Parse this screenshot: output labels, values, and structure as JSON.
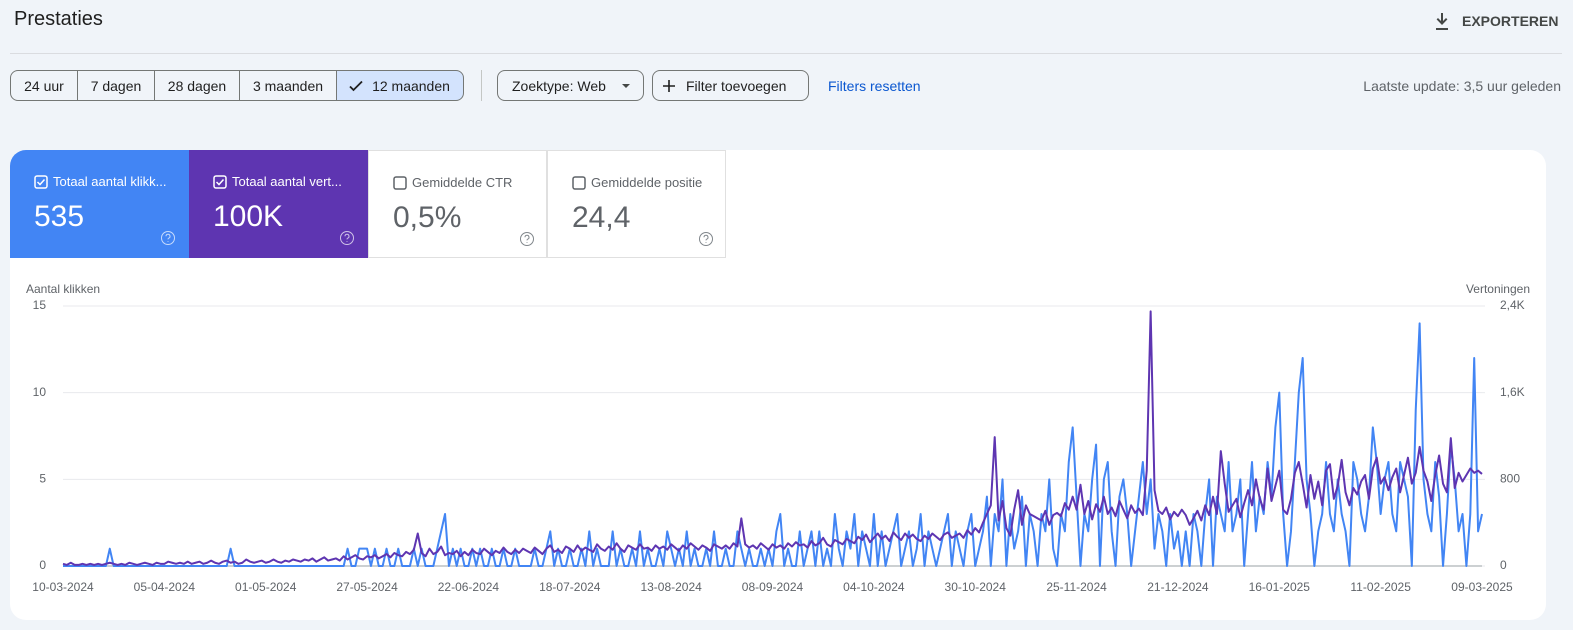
{
  "header": {
    "title": "Prestaties",
    "export": "EXPORTEREN"
  },
  "filters": {
    "ranges": [
      "24 uur",
      "7 dagen",
      "28 dagen",
      "3 maanden",
      "12 maanden"
    ],
    "search_type": "Zoektype: Web",
    "add_filter": "Filter toevoegen",
    "reset": "Filters resetten",
    "last_update": "Laatste update: 3,5 uur geleden"
  },
  "metrics": [
    {
      "label": "Totaal aantal klikk...",
      "value": "535"
    },
    {
      "label": "Totaal aantal vert...",
      "value": "100K"
    },
    {
      "label": "Gemiddelde CTR",
      "value": "0,5%"
    },
    {
      "label": "Gemiddelde positie",
      "value": "24,4"
    }
  ],
  "chart_data": {
    "type": "line",
    "y_label": "Aantal klikken",
    "y2_label": "Vertoningen",
    "ylim": [
      0,
      15
    ],
    "yticks": [
      0,
      5,
      10,
      15
    ],
    "y2lim": [
      0,
      2400
    ],
    "y2ticks": [
      0,
      800,
      {
        "value": 1600,
        "label": "1,6K"
      },
      {
        "value": 2400,
        "label": "2,4K"
      }
    ],
    "grid": true,
    "categories": [
      "10-03-2024",
      null,
      null,
      null,
      null,
      null,
      null,
      null,
      null,
      null,
      null,
      null,
      null,
      null,
      null,
      null,
      null,
      null,
      null,
      null,
      null,
      null,
      null,
      null,
      null,
      null,
      "05-04-2024",
      null,
      null,
      null,
      null,
      null,
      null,
      null,
      null,
      null,
      null,
      null,
      null,
      null,
      null,
      null,
      null,
      null,
      null,
      null,
      null,
      null,
      null,
      null,
      null,
      null,
      "01-05-2024",
      null,
      null,
      null,
      null,
      null,
      null,
      null,
      null,
      null,
      null,
      null,
      null,
      null,
      null,
      null,
      null,
      null,
      null,
      null,
      null,
      null,
      null,
      null,
      null,
      null,
      "27-05-2024",
      null,
      null,
      null,
      null,
      null,
      null,
      null,
      null,
      null,
      null,
      null,
      null,
      null,
      null,
      null,
      null,
      null,
      null,
      null,
      null,
      null,
      null,
      null,
      null,
      null,
      "22-06-2024",
      null,
      null,
      null,
      null,
      null,
      null,
      null,
      null,
      null,
      null,
      null,
      null,
      null,
      null,
      null,
      null,
      null,
      null,
      null,
      null,
      null,
      null,
      null,
      null,
      null,
      "18-07-2024",
      null,
      null,
      null,
      null,
      null,
      null,
      null,
      null,
      null,
      null,
      null,
      null,
      null,
      null,
      null,
      null,
      null,
      null,
      null,
      null,
      null,
      null,
      null,
      null,
      null,
      "13-08-2024",
      null,
      null,
      null,
      null,
      null,
      null,
      null,
      null,
      null,
      null,
      null,
      null,
      null,
      null,
      null,
      null,
      null,
      null,
      null,
      null,
      null,
      null,
      null,
      null,
      null,
      "08-09-2024",
      null,
      null,
      null,
      null,
      null,
      null,
      null,
      null,
      null,
      null,
      null,
      null,
      null,
      null,
      null,
      null,
      null,
      null,
      null,
      null,
      null,
      null,
      null,
      null,
      null,
      "04-10-2024",
      null,
      null,
      null,
      null,
      null,
      null,
      null,
      null,
      null,
      null,
      null,
      null,
      null,
      null,
      null,
      null,
      null,
      null,
      null,
      null,
      null,
      null,
      null,
      null,
      null,
      "30-10-2024",
      null,
      null,
      null,
      null,
      null,
      null,
      null,
      null,
      null,
      null,
      null,
      null,
      null,
      null,
      null,
      null,
      null,
      null,
      null,
      null,
      null,
      null,
      null,
      null,
      null,
      "25-11-2024",
      null,
      null,
      null,
      null,
      null,
      null,
      null,
      null,
      null,
      null,
      null,
      null,
      null,
      null,
      null,
      null,
      null,
      null,
      null,
      null,
      null,
      null,
      null,
      null,
      null,
      "21-12-2024",
      null,
      null,
      null,
      null,
      null,
      null,
      null,
      null,
      null,
      null,
      null,
      null,
      null,
      null,
      null,
      null,
      null,
      null,
      null,
      null,
      null,
      null,
      null,
      null,
      null,
      "16-01-2025",
      null,
      null,
      null,
      null,
      null,
      null,
      null,
      null,
      null,
      null,
      null,
      null,
      null,
      null,
      null,
      null,
      null,
      null,
      null,
      null,
      null,
      null,
      null,
      null,
      null,
      "11-02-2025",
      null,
      null,
      null,
      null,
      null,
      null,
      null,
      null,
      null,
      null,
      null,
      null,
      null,
      null,
      null,
      null,
      null,
      null,
      null,
      null,
      null,
      null,
      null,
      null,
      null,
      "09-03-2025"
    ],
    "series": [
      {
        "color": "#4285f4",
        "values": [
          0,
          0,
          0,
          0,
          0,
          0,
          0,
          0,
          0,
          0,
          0,
          0,
          1,
          0,
          0,
          0,
          0,
          0,
          0,
          0,
          0,
          0,
          0,
          0,
          0,
          0,
          0,
          0,
          0,
          0,
          0,
          0,
          0,
          0,
          0,
          0,
          0,
          0,
          0,
          0,
          0,
          0,
          0,
          1,
          0,
          0,
          0,
          0,
          0,
          0,
          0,
          0,
          0,
          0,
          0,
          0,
          0,
          0,
          0,
          0,
          0,
          0,
          0,
          0,
          0,
          0,
          0,
          0,
          0,
          0,
          0,
          0,
          0,
          1,
          0,
          0,
          1,
          1,
          1,
          0,
          1,
          0,
          0,
          1,
          0,
          0,
          1,
          0,
          0,
          0,
          1,
          0,
          1,
          0,
          0,
          0,
          1,
          2,
          3,
          0,
          1,
          0,
          1,
          0,
          0,
          1,
          0,
          1,
          0,
          0,
          1,
          0,
          0,
          1,
          0,
          0,
          1,
          0,
          0,
          0,
          0,
          1,
          0,
          0,
          1,
          2,
          0,
          1,
          0,
          0,
          1,
          0,
          0,
          1,
          0,
          2,
          0,
          1,
          0,
          0,
          0,
          2,
          0,
          1,
          0,
          0,
          1,
          0,
          2,
          0,
          1,
          0,
          0,
          1,
          0,
          2,
          1,
          0,
          1,
          0,
          2,
          0,
          1,
          0,
          0,
          1,
          0,
          2,
          0,
          0,
          1,
          0,
          0,
          2,
          1,
          0,
          1,
          0,
          0,
          1,
          0,
          1,
          0,
          2,
          3,
          0,
          1,
          0,
          0,
          2,
          0,
          1,
          2,
          0,
          2,
          0,
          1,
          0,
          3,
          1,
          0,
          2,
          1,
          3,
          0,
          2,
          1,
          0,
          3,
          0,
          2,
          0,
          1,
          2,
          3,
          0,
          1,
          2,
          0,
          1,
          3,
          0,
          2,
          1,
          0,
          1,
          2,
          3,
          0,
          2,
          1,
          0,
          2,
          3,
          0,
          1,
          2,
          4,
          0,
          3,
          2,
          5,
          0,
          3,
          1,
          2,
          4,
          0,
          3,
          2,
          0,
          3,
          2,
          5,
          1,
          0,
          3,
          2,
          6,
          8,
          4,
          0,
          3,
          2,
          5,
          7,
          0,
          5,
          6,
          2,
          0,
          4,
          5,
          3,
          0,
          2,
          4,
          6,
          3,
          5,
          1,
          3,
          2,
          0,
          3,
          1,
          2,
          0,
          2,
          0,
          3,
          2,
          0,
          3,
          5,
          0,
          4,
          3,
          2,
          6,
          2,
          3,
          5,
          0,
          3,
          6,
          2,
          4,
          3,
          6,
          4,
          8,
          10,
          3,
          0,
          2,
          6,
          10,
          12,
          5,
          3,
          0,
          2,
          3,
          6,
          3,
          2,
          5,
          3,
          2,
          0,
          6,
          5,
          3,
          2,
          4,
          8,
          6,
          3,
          5,
          6,
          3,
          2,
          6,
          5,
          4,
          0,
          9,
          14,
          5,
          3,
          2,
          6,
          4,
          0,
          3,
          7,
          5,
          2,
          3,
          0,
          3,
          12,
          2,
          3
        ]
      },
      {
        "color": "#5e35b1",
        "axis": "y2",
        "values": [
          20,
          10,
          30,
          10,
          10,
          20,
          10,
          20,
          10,
          20,
          10,
          20,
          30,
          20,
          10,
          20,
          10,
          30,
          20,
          10,
          20,
          30,
          20,
          10,
          30,
          20,
          20,
          40,
          30,
          20,
          30,
          20,
          40,
          20,
          30,
          40,
          20,
          30,
          50,
          30,
          20,
          40,
          50,
          30,
          40,
          20,
          30,
          60,
          40,
          30,
          40,
          50,
          30,
          40,
          60,
          40,
          30,
          50,
          40,
          60,
          50,
          40,
          60,
          50,
          70,
          40,
          60,
          80,
          50,
          60,
          70,
          50,
          90,
          60,
          80,
          100,
          70,
          60,
          90,
          80,
          100,
          70,
          90,
          110,
          80,
          120,
          100,
          90,
          130,
          110,
          150,
          300,
          120,
          90,
          160,
          110,
          130,
          180,
          100,
          120,
          110,
          140,
          90,
          130,
          100,
          150,
          120,
          110,
          160,
          130,
          100,
          140,
          120,
          170,
          130,
          110,
          150,
          120,
          160,
          140,
          120,
          170,
          140,
          110,
          160,
          190,
          130,
          150,
          120,
          180,
          160,
          130,
          190,
          140,
          170,
          150,
          130,
          200,
          160,
          140,
          180,
          150,
          210,
          160,
          130,
          190,
          170,
          150,
          200,
          160,
          170,
          140,
          190,
          160,
          180,
          150,
          200,
          170,
          140,
          190,
          160,
          210,
          180,
          150,
          190,
          170,
          140,
          200,
          180,
          160,
          190,
          160,
          210,
          180,
          440,
          200,
          170,
          190,
          160,
          210,
          180,
          150,
          200,
          170,
          190,
          160,
          210,
          180,
          220,
          190,
          200,
          170,
          230,
          190,
          210,
          260,
          200,
          180,
          240,
          220,
          200,
          250,
          230,
          210,
          270,
          240,
          290,
          220,
          260,
          300,
          250,
          280,
          230,
          310,
          270,
          240,
          300,
          260,
          290,
          250,
          230,
          280,
          250,
          300,
          270,
          240,
          290,
          310,
          260,
          280,
          300,
          260,
          330,
          290,
          350,
          310,
          400,
          480,
          560,
          1190,
          420,
          600,
          350,
          280,
          520,
          700,
          380,
          560,
          480,
          460,
          440,
          420,
          510,
          380,
          470,
          490,
          460,
          580,
          520,
          640,
          520,
          750,
          480,
          600,
          430,
          570,
          500,
          640,
          480,
          540,
          460,
          600,
          520,
          440,
          560,
          490,
          530,
          470,
          880,
          2350,
          700,
          510,
          480,
          540,
          430,
          500,
          460,
          520,
          470,
          380,
          440,
          510,
          420,
          560,
          470,
          640,
          480,
          1060,
          760,
          500,
          560,
          620,
          450,
          580,
          700,
          560,
          800,
          620,
          520,
          900,
          600,
          740,
          880,
          520,
          480,
          620,
          860,
          960,
          760,
          540,
          840,
          620,
          780,
          560,
          880,
          940,
          620,
          740,
          980,
          680,
          560,
          720,
          660,
          780,
          840,
          620,
          900,
          1000,
          760,
          820,
          700,
          820,
          900,
          680,
          840,
          1000,
          760,
          860,
          1100,
          880,
          780,
          600,
          840,
          1020,
          760,
          680,
          1180,
          720,
          860,
          780,
          840,
          900,
          860,
          880,
          850
        ]
      }
    ]
  }
}
